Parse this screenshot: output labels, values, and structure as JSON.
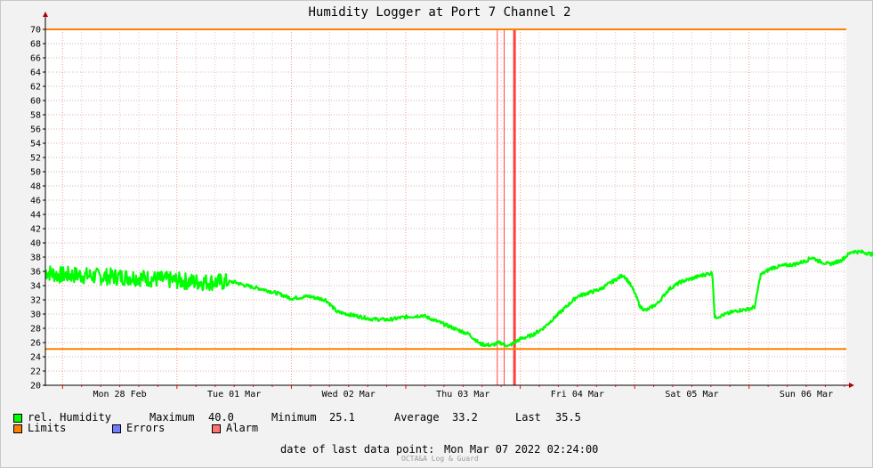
{
  "chart_data": {
    "type": "line",
    "title": "Humidity Logger at Port 7 Channel 2",
    "ylim": [
      20,
      70
    ],
    "ytick_step": 2,
    "y_ticks": [
      "20",
      "22",
      "24",
      "26",
      "28",
      "30",
      "32",
      "34",
      "36",
      "38",
      "40",
      "42",
      "44",
      "46",
      "48",
      "50",
      "52",
      "54",
      "56",
      "58",
      "60",
      "62",
      "64",
      "66",
      "68",
      "70"
    ],
    "x_tick_labels": [
      "Mon 28 Feb",
      "Tue 01 Mar",
      "Wed 02 Mar",
      "Thu 03 Mar",
      "Fri 04 Mar",
      "Sat 05 Mar",
      "Sun 06 Mar"
    ],
    "x_range_days": [
      -0.15,
      6.85
    ],
    "grid": true,
    "series": [
      {
        "name": "rel. Humidity",
        "color": "#00ff00",
        "noisy_until_day": 1.45,
        "points": [
          [
            -0.15,
            36.0
          ],
          [
            -0.05,
            35.5
          ],
          [
            0.1,
            35.5
          ],
          [
            0.3,
            35.3
          ],
          [
            0.6,
            35.2
          ],
          [
            0.9,
            34.8
          ],
          [
            1.2,
            34.5
          ],
          [
            1.4,
            34.5
          ],
          [
            1.5,
            34.5
          ],
          [
            1.6,
            34.0
          ],
          [
            1.75,
            33.5
          ],
          [
            1.9,
            32.8
          ],
          [
            2.0,
            32.2
          ],
          [
            2.15,
            32.5
          ],
          [
            2.3,
            32.0
          ],
          [
            2.4,
            30.3
          ],
          [
            2.55,
            29.8
          ],
          [
            2.7,
            29.3
          ],
          [
            2.85,
            29.2
          ],
          [
            3.0,
            29.6
          ],
          [
            3.15,
            29.8
          ],
          [
            3.3,
            28.8
          ],
          [
            3.45,
            27.8
          ],
          [
            3.55,
            27.2
          ],
          [
            3.65,
            25.8
          ],
          [
            3.75,
            25.6
          ],
          [
            3.82,
            26.0
          ],
          [
            3.9,
            25.5
          ],
          [
            4.0,
            26.5
          ],
          [
            4.1,
            27.0
          ],
          [
            4.2,
            28.0
          ],
          [
            4.3,
            29.5
          ],
          [
            4.4,
            31.0
          ],
          [
            4.5,
            32.5
          ],
          [
            4.6,
            33.0
          ],
          [
            4.7,
            33.5
          ],
          [
            4.8,
            34.5
          ],
          [
            4.9,
            35.5
          ],
          [
            4.95,
            34.5
          ],
          [
            5.0,
            33.0
          ],
          [
            5.05,
            31.0
          ],
          [
            5.1,
            30.5
          ],
          [
            5.2,
            31.5
          ],
          [
            5.3,
            33.5
          ],
          [
            5.4,
            34.5
          ],
          [
            5.5,
            35.0
          ],
          [
            5.6,
            35.5
          ],
          [
            5.68,
            35.8
          ],
          [
            5.7,
            29.5
          ],
          [
            5.8,
            30.0
          ],
          [
            5.9,
            30.5
          ],
          [
            6.0,
            30.7
          ],
          [
            6.05,
            31.0
          ],
          [
            6.1,
            35.5
          ],
          [
            6.2,
            36.5
          ],
          [
            6.3,
            36.8
          ],
          [
            6.4,
            37.0
          ],
          [
            6.5,
            37.5
          ],
          [
            6.55,
            38.0
          ],
          [
            6.6,
            37.5
          ],
          [
            6.7,
            37.0
          ],
          [
            6.8,
            37.5
          ],
          [
            6.9,
            38.8
          ],
          [
            7.0,
            38.7
          ],
          [
            7.1,
            38.3
          ],
          [
            7.2,
            37.8
          ],
          [
            7.3,
            38.0
          ],
          [
            7.4,
            38.3
          ],
          [
            7.45,
            39.0
          ],
          [
            7.5,
            38.2
          ],
          [
            7.55,
            37.5
          ],
          [
            7.6,
            37.0
          ],
          [
            7.63,
            34.0
          ],
          [
            7.7,
            38.5
          ],
          [
            7.75,
            39.8
          ],
          [
            7.8,
            38.0
          ],
          [
            7.85,
            36.5
          ],
          [
            7.9,
            35.5
          ],
          [
            8.0,
            35.0
          ],
          [
            8.1,
            34.8
          ],
          [
            8.2,
            34.0
          ],
          [
            8.3,
            33.5
          ],
          [
            8.35,
            35.5
          ],
          [
            8.4,
            35.8
          ]
        ]
      }
    ],
    "limits": {
      "upper": 70,
      "lower": 25.1,
      "color": "#ff8000"
    },
    "alarm_marks": {
      "days": [
        3.8,
        3.86,
        3.95
      ],
      "color": "#ff4040"
    },
    "legend": {
      "rows": [
        {
          "swatch": "#00ff00",
          "label": "rel. Humidity"
        },
        {
          "swatch": "#ff8000",
          "label": "Limits"
        },
        {
          "swatch": "#6e7eff",
          "label": "Errors"
        },
        {
          "swatch": "#ff7070",
          "label": "Alarm"
        }
      ],
      "stats": {
        "max_label": "Maximum",
        "max_value": "40.0",
        "min_label": "Minimum",
        "min_value": "25.1",
        "avg_label": "Average",
        "avg_value": "33.2",
        "last_label": "Last",
        "last_value": "35.5"
      }
    },
    "footer": {
      "last_point_label": "date of last data point:",
      "last_point_value": "Mon Mar 07 2022 02:24:00",
      "credit": "OCTA&A Log & Guard"
    }
  }
}
